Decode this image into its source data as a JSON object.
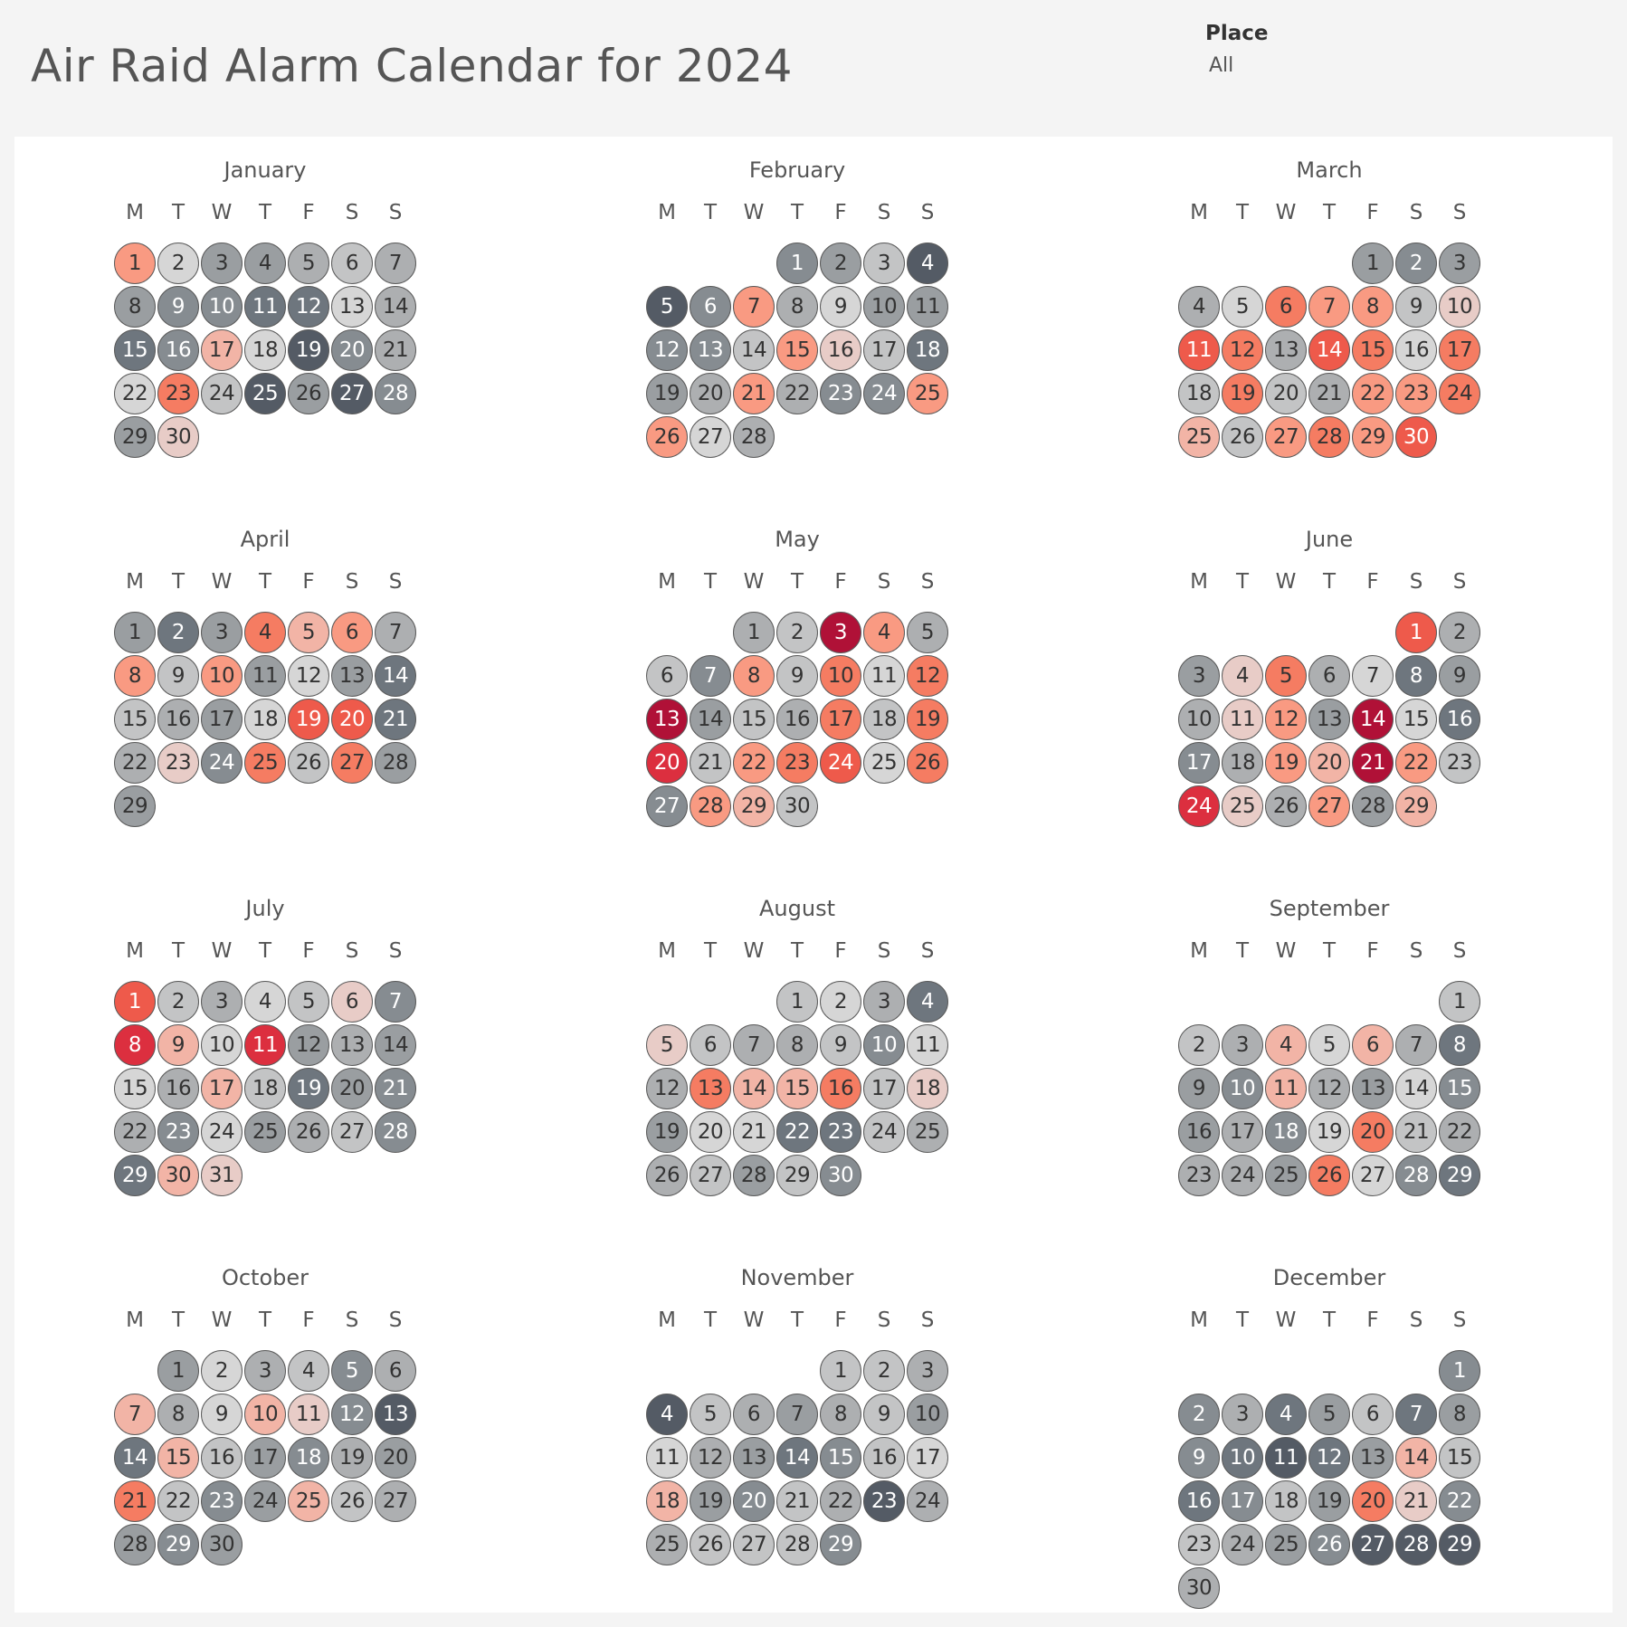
{
  "header": {
    "title": "Air Raid Alarm Calendar for 2024",
    "filter_label": "Place",
    "filter_value": "All"
  },
  "weekday_labels": [
    "M",
    "T",
    "W",
    "T",
    "F",
    "S",
    "S"
  ],
  "legend_colors": {
    "g1": "#d6d6d6",
    "g2": "#c3c4c5",
    "g3": "#adafb1",
    "g4": "#9a9ea1",
    "g5": "#868c91",
    "g6": "#6e767e",
    "g7": "#545b65",
    "p": "#e8ccc7",
    "r1": "#f2b4a6",
    "r2": "#f99a82",
    "r3": "#f57c62",
    "r4": "#ee5a4b",
    "r5": "#dc2f3f",
    "r6": "#b01137"
  },
  "months": [
    {
      "name": "January",
      "start_col": 0,
      "days": [
        "r2",
        "g1",
        "g4",
        "g4",
        "g3",
        "g2",
        "g3",
        "g4",
        "g5",
        "g5",
        "g6",
        "g6",
        "g1",
        "g3",
        "g6",
        "g5",
        "r1",
        "g1",
        "g7",
        "g5",
        "g3",
        "g1",
        "r3",
        "g2",
        "g7",
        "g4",
        "g7",
        "g5",
        "g4",
        "p"
      ]
    },
    {
      "name": "February",
      "start_col": 3,
      "days": [
        "g5",
        "g4",
        "g2",
        "g7",
        "g7",
        "g5",
        "r2",
        "g3",
        "g1",
        "g4",
        "g4",
        "g5",
        "g5",
        "g2",
        "r2",
        "p",
        "g2",
        "g6",
        "g4",
        "g3",
        "r2",
        "g3",
        "g5",
        "g5",
        "r2",
        "r2",
        "g1",
        "g3"
      ]
    },
    {
      "name": "March",
      "start_col": 4,
      "days": [
        "g4",
        "g5",
        "g4",
        "g3",
        "g1",
        "r3",
        "r2",
        "r2",
        "g2",
        "p",
        "r4",
        "r3",
        "g3",
        "r4",
        "r3",
        "g1",
        "r3",
        "g2",
        "r3",
        "g2",
        "g3",
        "r2",
        "r2",
        "r3",
        "r1",
        "g2",
        "r2",
        "r3",
        "r2",
        "r4"
      ]
    },
    {
      "name": "April",
      "start_col": 0,
      "days": [
        "g4",
        "g6",
        "g4",
        "r3",
        "r1",
        "r2",
        "g3",
        "r2",
        "g2",
        "r2",
        "g4",
        "g1",
        "g4",
        "g6",
        "g2",
        "g3",
        "g4",
        "g1",
        "r4",
        "r4",
        "g6",
        "g3",
        "p",
        "g5",
        "r3",
        "g2",
        "r3",
        "g4",
        "g4"
      ]
    },
    {
      "name": "May",
      "start_col": 2,
      "days": [
        "g3",
        "g2",
        "r6",
        "r2",
        "g3",
        "g2",
        "g5",
        "r2",
        "g2",
        "r3",
        "g1",
        "r3",
        "r6",
        "g4",
        "g2",
        "g3",
        "r3",
        "g2",
        "r3",
        "r5",
        "g2",
        "r2",
        "r3",
        "r4",
        "g1",
        "r3",
        "g5",
        "r2",
        "r1",
        "g2"
      ]
    },
    {
      "name": "June",
      "start_col": 5,
      "days": [
        "r4",
        "g3",
        "g4",
        "p",
        "r3",
        "g3",
        "g1",
        "g6",
        "g4",
        "g3",
        "p",
        "r2",
        "g4",
        "r6",
        "g1",
        "g6",
        "g5",
        "g3",
        "r2",
        "r1",
        "r6",
        "r2",
        "g2",
        "r5",
        "p",
        "g3",
        "r2",
        "g4",
        "r1"
      ]
    },
    {
      "name": "July",
      "start_col": 0,
      "days": [
        "r4",
        "g2",
        "g3",
        "g1",
        "g2",
        "p",
        "g5",
        "r5",
        "r1",
        "g1",
        "r5",
        "g4",
        "g3",
        "g4",
        "g1",
        "g3",
        "r1",
        "g2",
        "g6",
        "g4",
        "g5",
        "g3",
        "g5",
        "g1",
        "g4",
        "g3",
        "g2",
        "g5",
        "g6",
        "r1",
        "p"
      ]
    },
    {
      "name": "August",
      "start_col": 3,
      "days": [
        "g2",
        "g1",
        "g3",
        "g6",
        "p",
        "g2",
        "g3",
        "g3",
        "g2",
        "g5",
        "g1",
        "g3",
        "r3",
        "r1",
        "r1",
        "r3",
        "g2",
        "p",
        "g4",
        "g1",
        "g1",
        "g6",
        "g6",
        "g2",
        "g3",
        "g3",
        "g2",
        "g4",
        "g2",
        "g5"
      ]
    },
    {
      "name": "September",
      "start_col": 6,
      "days": [
        "g2",
        "g2",
        "g3",
        "r1",
        "g1",
        "r1",
        "g3",
        "g6",
        "g4",
        "g5",
        "r1",
        "g3",
        "g4",
        "g1",
        "g5",
        "g4",
        "g3",
        "g5",
        "g1",
        "r3",
        "g2",
        "g3",
        "g3",
        "g3",
        "g4",
        "r3",
        "g1",
        "g5",
        "g6"
      ]
    },
    {
      "name": "October",
      "start_col": 1,
      "days": [
        "g4",
        "g1",
        "g3",
        "g2",
        "g5",
        "g3",
        "r1",
        "g3",
        "g1",
        "r1",
        "p",
        "g5",
        "g7",
        "g6",
        "r1",
        "g2",
        "g4",
        "g5",
        "g3",
        "g4",
        "r3",
        "g2",
        "g5",
        "g4",
        "r1",
        "g2",
        "g3",
        "g4",
        "g5",
        "g4"
      ]
    },
    {
      "name": "November",
      "start_col": 4,
      "days": [
        "g2",
        "g2",
        "g3",
        "g7",
        "g2",
        "g3",
        "g4",
        "g3",
        "g2",
        "g4",
        "g1",
        "g3",
        "g4",
        "g6",
        "g5",
        "g2",
        "g1",
        "r1",
        "g4",
        "g5",
        "g2",
        "g3",
        "g7",
        "g3",
        "g3",
        "g2",
        "g2",
        "g2",
        "g5"
      ]
    },
    {
      "name": "December",
      "start_col": 6,
      "days": [
        "g5",
        "g5",
        "g3",
        "g6",
        "g4",
        "g2",
        "g6",
        "g4",
        "g5",
        "g6",
        "g7",
        "g6",
        "g4",
        "r1",
        "g2",
        "g6",
        "g5",
        "g2",
        "g4",
        "r3",
        "p",
        "g5",
        "g2",
        "g3",
        "g4",
        "g5",
        "g7",
        "g7",
        "g7",
        "g3"
      ]
    }
  ]
}
